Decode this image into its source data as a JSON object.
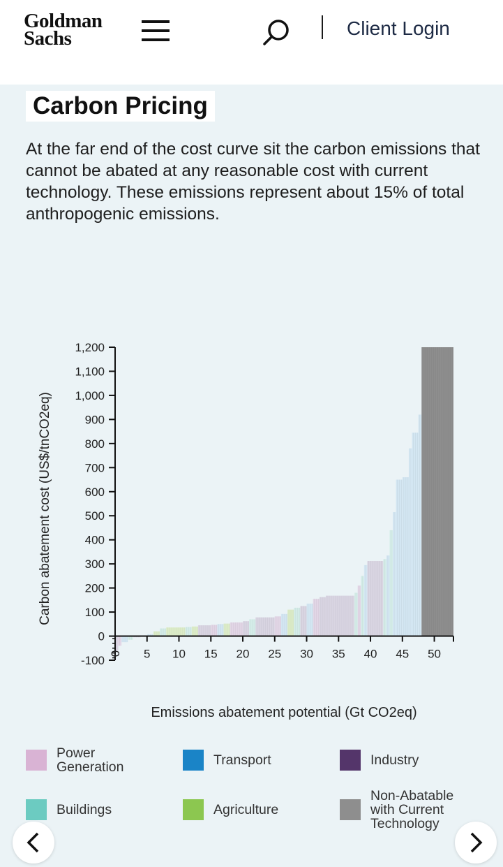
{
  "header": {
    "logo_line1": "Goldman",
    "logo_line2": "Sachs",
    "client_login": "Client Login"
  },
  "icons": [
    "menu-icon",
    "search-icon",
    "chevron-left-icon",
    "chevron-right-icon"
  ],
  "section": {
    "title": "Carbon Pricing",
    "description": "At the far end of the cost curve sit the carbon emissions that cannot be abated at any reasonable cost with current technology. These emissions represent about 15% of total anthropogenic emissions."
  },
  "legend": [
    {
      "label": "Power\nGeneration",
      "color": "#d9b3d4"
    },
    {
      "label": "Transport",
      "color": "#1a84c7"
    },
    {
      "label": "Industry",
      "color": "#54356a"
    },
    {
      "label": "Buildings",
      "color": "#6ccbc1"
    },
    {
      "label": "Agriculture",
      "color": "#8cc750"
    },
    {
      "label": "Non-Abatable\nwith Current\nTechnology",
      "color": "#8e8e8e"
    }
  ],
  "chart_data": {
    "type": "bar",
    "xlabel": "Emissions abatement potential (Gt CO2eq)",
    "ylabel": "Carbon abatement cost (US$/tnCO2eq)",
    "xlim": [
      0,
      53
    ],
    "ylim": [
      -100,
      1200
    ],
    "x_ticks": [
      "0",
      "5",
      "10",
      "15",
      "20",
      "25",
      "30",
      "35",
      "40",
      "45",
      "50"
    ],
    "y_ticks": [
      "-100",
      "0",
      "100",
      "200",
      "300",
      "400",
      "500",
      "600",
      "700",
      "800",
      "900",
      "1,000",
      "1,100",
      "1,200"
    ],
    "colors": {
      "Power Generation": "#e2d6e6",
      "Transport": "#d3e6f2",
      "Industry": "#d9d5e2",
      "Buildings": "#d4ece8",
      "Agriculture": "#dcecc8",
      "Non-Abatable with Current Technology": "#8e8e8e"
    },
    "segments": [
      {
        "x0": 0.0,
        "x1": 0.5,
        "value": -60,
        "sector": "Industry"
      },
      {
        "x0": 0.5,
        "x1": 1.0,
        "value": -40,
        "sector": "Power Generation"
      },
      {
        "x0": 1.0,
        "x1": 2.0,
        "value": -25,
        "sector": "Transport"
      },
      {
        "x0": 2.0,
        "x1": 2.8,
        "value": -15,
        "sector": "Buildings"
      },
      {
        "x0": 2.8,
        "x1": 4.0,
        "value": -5,
        "sector": "Industry"
      },
      {
        "x0": 4.0,
        "x1": 5.0,
        "value": 3,
        "sector": "Power Generation"
      },
      {
        "x0": 5.0,
        "x1": 6.0,
        "value": 8,
        "sector": "Transport"
      },
      {
        "x0": 6.0,
        "x1": 7.0,
        "value": 20,
        "sector": "Agriculture"
      },
      {
        "x0": 7.0,
        "x1": 8.0,
        "value": 32,
        "sector": "Buildings"
      },
      {
        "x0": 8.0,
        "x1": 11.0,
        "value": 36,
        "sector": "Agriculture"
      },
      {
        "x0": 11.0,
        "x1": 12.0,
        "value": 38,
        "sector": "Buildings"
      },
      {
        "x0": 12.0,
        "x1": 13.0,
        "value": 40,
        "sector": "Agriculture"
      },
      {
        "x0": 13.0,
        "x1": 15.0,
        "value": 45,
        "sector": "Industry"
      },
      {
        "x0": 15.0,
        "x1": 16.0,
        "value": 47,
        "sector": "Power Generation"
      },
      {
        "x0": 16.0,
        "x1": 17.0,
        "value": 50,
        "sector": "Transport"
      },
      {
        "x0": 17.0,
        "x1": 18.0,
        "value": 52,
        "sector": "Agriculture"
      },
      {
        "x0": 18.0,
        "x1": 20.0,
        "value": 57,
        "sector": "Power Generation"
      },
      {
        "x0": 20.0,
        "x1": 21.0,
        "value": 62,
        "sector": "Industry"
      },
      {
        "x0": 21.0,
        "x1": 22.0,
        "value": 70,
        "sector": "Buildings"
      },
      {
        "x0": 22.0,
        "x1": 25.0,
        "value": 78,
        "sector": "Industry"
      },
      {
        "x0": 25.0,
        "x1": 26.0,
        "value": 82,
        "sector": "Power Generation"
      },
      {
        "x0": 26.0,
        "x1": 27.0,
        "value": 92,
        "sector": "Transport"
      },
      {
        "x0": 27.0,
        "x1": 28.0,
        "value": 110,
        "sector": "Agriculture"
      },
      {
        "x0": 28.0,
        "x1": 29.0,
        "value": 118,
        "sector": "Buildings"
      },
      {
        "x0": 29.0,
        "x1": 30.0,
        "value": 125,
        "sector": "Industry"
      },
      {
        "x0": 30.0,
        "x1": 31.0,
        "value": 135,
        "sector": "Transport"
      },
      {
        "x0": 31.0,
        "x1": 32.0,
        "value": 155,
        "sector": "Power Generation"
      },
      {
        "x0": 32.0,
        "x1": 33.0,
        "value": 162,
        "sector": "Industry"
      },
      {
        "x0": 33.0,
        "x1": 37.5,
        "value": 168,
        "sector": "Industry"
      },
      {
        "x0": 37.5,
        "x1": 38.0,
        "value": 180,
        "sector": "Buildings"
      },
      {
        "x0": 38.0,
        "x1": 38.5,
        "value": 210,
        "sector": "Power Generation"
      },
      {
        "x0": 38.5,
        "x1": 39.0,
        "value": 250,
        "sector": "Buildings"
      },
      {
        "x0": 39.0,
        "x1": 39.5,
        "value": 295,
        "sector": "Transport"
      },
      {
        "x0": 39.5,
        "x1": 42.0,
        "value": 312,
        "sector": "Industry"
      },
      {
        "x0": 42.0,
        "x1": 42.5,
        "value": 320,
        "sector": "Buildings"
      },
      {
        "x0": 42.5,
        "x1": 43.0,
        "value": 335,
        "sector": "Transport"
      },
      {
        "x0": 43.0,
        "x1": 43.5,
        "value": 440,
        "sector": "Buildings"
      },
      {
        "x0": 43.5,
        "x1": 44.0,
        "value": 515,
        "sector": "Transport"
      },
      {
        "x0": 44.0,
        "x1": 45.0,
        "value": 650,
        "sector": "Transport"
      },
      {
        "x0": 45.0,
        "x1": 46.0,
        "value": 660,
        "sector": "Transport"
      },
      {
        "x0": 46.0,
        "x1": 46.5,
        "value": 780,
        "sector": "Transport"
      },
      {
        "x0": 46.5,
        "x1": 47.5,
        "value": 845,
        "sector": "Transport"
      },
      {
        "x0": 47.5,
        "x1": 48.0,
        "value": 920,
        "sector": "Transport"
      },
      {
        "x0": 48.0,
        "x1": 53.0,
        "value": 1200,
        "sector": "Non-Abatable with Current Technology"
      }
    ]
  }
}
